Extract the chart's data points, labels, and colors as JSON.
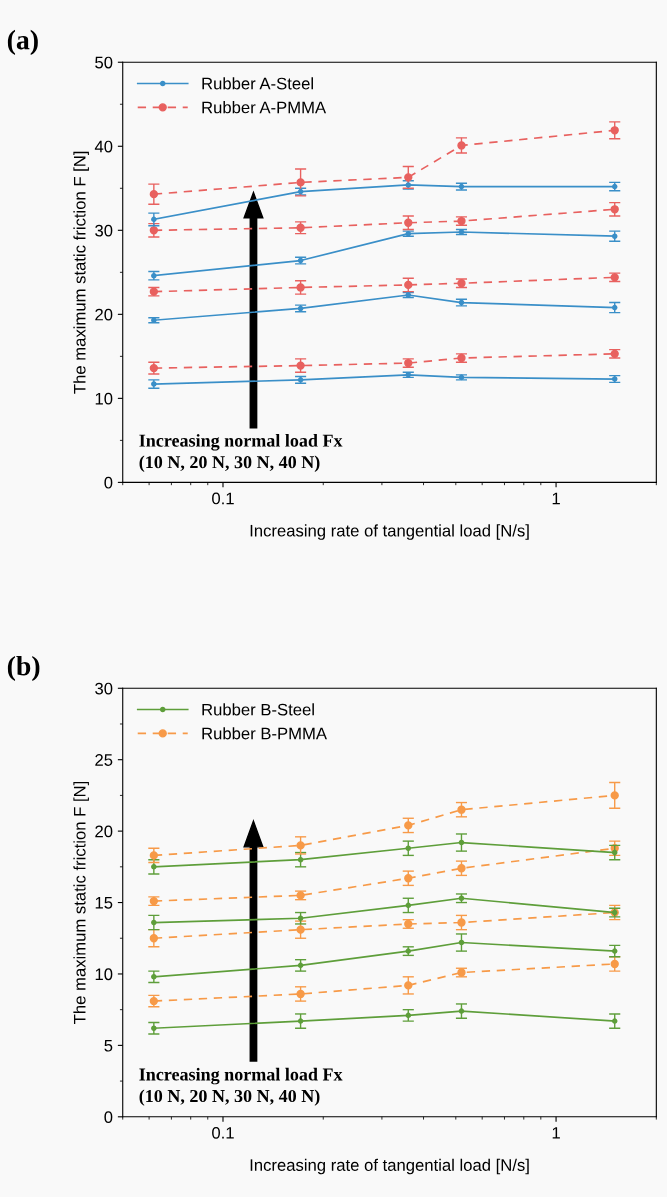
{
  "chart_data": [
    {
      "type": "line",
      "title": "(a)",
      "xlabel": "Increasing rate of tangential load [N/s]",
      "ylabel": "The maximum static friction F [N]",
      "log": "x",
      "xlim": [
        0.05,
        2
      ],
      "xticks": [
        0.1,
        1
      ],
      "ylim": [
        0,
        50
      ],
      "yticks": [
        0,
        10,
        20,
        30,
        40,
        50
      ],
      "legend": "top left",
      "grid": false,
      "marker": "circle",
      "x": [
        0.062,
        0.171,
        0.36,
        0.52,
        1.5
      ],
      "annotations": [
        "Increasing normal load Fx\n(10 N, 20 N, 30 N, 40 N)"
      ],
      "series": [
        {
          "name": "Rubber A-Steel",
          "color": "#3a8fc8",
          "line_style": "solid",
          "values": [
            11.7,
            12.2,
            12.8,
            12.5,
            12.3
          ],
          "errors": [
            0.5,
            0.4,
            0.3,
            0.3,
            0.4
          ]
        },
        {
          "name": "Rubber A-PMMA",
          "color": "#e8615f",
          "line_style": "dashed",
          "values": [
            13.6,
            13.9,
            14.2,
            14.8,
            15.3
          ],
          "errors": [
            0.7,
            0.8,
            0.5,
            0.5,
            0.5
          ]
        },
        {
          "color": "#3a8fc8",
          "line_style": "solid",
          "values": [
            19.3,
            20.7,
            22.3,
            21.4,
            20.8
          ],
          "errors": [
            0.3,
            0.4,
            0.3,
            0.4,
            0.6
          ]
        },
        {
          "color": "#e8615f",
          "line_style": "dashed",
          "values": [
            22.7,
            23.2,
            23.5,
            23.7,
            24.4
          ],
          "errors": [
            0.5,
            0.8,
            0.8,
            0.5,
            0.5
          ]
        },
        {
          "color": "#3a8fc8",
          "line_style": "solid",
          "values": [
            24.6,
            26.4,
            29.6,
            29.8,
            29.3
          ],
          "errors": [
            0.5,
            0.4,
            0.3,
            0.3,
            0.6
          ]
        },
        {
          "color": "#e8615f",
          "line_style": "dashed",
          "values": [
            30.0,
            30.3,
            30.9,
            31.1,
            32.5
          ],
          "errors": [
            0.8,
            0.7,
            0.8,
            0.5,
            0.8
          ]
        },
        {
          "color": "#3a8fc8",
          "line_style": "solid",
          "values": [
            31.3,
            34.6,
            35.4,
            35.2,
            35.2
          ],
          "errors": [
            0.75,
            0.4,
            0.5,
            0.4,
            0.5
          ]
        },
        {
          "color": "#e8615f",
          "line_style": "dashed",
          "values": [
            34.3,
            35.7,
            36.3,
            40.1,
            41.9
          ],
          "errors": [
            1.2,
            1.6,
            1.3,
            0.9,
            1.0
          ]
        }
      ]
    },
    {
      "type": "line",
      "title": "(b)",
      "xlabel": "Increasing rate of tangential load [N/s]",
      "ylabel": "The maximum static friction F [N]",
      "log": "x",
      "xlim": [
        0.05,
        2
      ],
      "xticks": [
        0.1,
        1
      ],
      "ylim": [
        0,
        30
      ],
      "yticks": [
        0,
        5,
        10,
        15,
        20,
        25,
        30
      ],
      "legend": "top left",
      "grid": false,
      "marker": "circle",
      "x": [
        0.062,
        0.171,
        0.36,
        0.52,
        1.5
      ],
      "annotations": [
        "Increasing normal load Fx\n(10 N, 20 N, 30 N, 40 N)"
      ],
      "series": [
        {
          "name": "Rubber B-Steel",
          "color": "#5e9e3a",
          "line_style": "solid",
          "values": [
            6.2,
            6.7,
            7.1,
            7.4,
            6.7
          ],
          "errors": [
            0.4,
            0.5,
            0.4,
            0.5,
            0.5
          ]
        },
        {
          "name": "Rubber B-PMMA",
          "color": "#f79a48",
          "line_style": "dashed",
          "values": [
            8.1,
            8.6,
            9.2,
            10.1,
            10.7
          ],
          "errors": [
            0.4,
            0.5,
            0.6,
            0.3,
            0.5
          ]
        },
        {
          "color": "#5e9e3a",
          "line_style": "solid",
          "values": [
            9.8,
            10.6,
            11.6,
            12.2,
            11.6
          ],
          "errors": [
            0.4,
            0.4,
            0.3,
            0.6,
            0.4
          ]
        },
        {
          "color": "#f79a48",
          "line_style": "dashed",
          "values": [
            12.5,
            13.1,
            13.5,
            13.6,
            14.3
          ],
          "errors": [
            0.6,
            0.6,
            0.3,
            0.5,
            0.5
          ]
        },
        {
          "color": "#5e9e3a",
          "line_style": "solid",
          "values": [
            13.6,
            13.9,
            14.8,
            15.3,
            14.3
          ],
          "errors": [
            0.5,
            0.4,
            0.5,
            0.3,
            0.3
          ]
        },
        {
          "color": "#f79a48",
          "line_style": "dashed",
          "values": [
            15.1,
            15.5,
            16.7,
            17.4,
            18.8
          ],
          "errors": [
            0.3,
            0.3,
            0.5,
            0.5,
            0.5
          ]
        },
        {
          "color": "#5e9e3a",
          "line_style": "solid",
          "values": [
            17.5,
            18.0,
            18.8,
            19.2,
            18.5
          ],
          "errors": [
            0.5,
            0.5,
            0.5,
            0.6,
            0.5
          ]
        },
        {
          "color": "#f79a48",
          "line_style": "dashed",
          "values": [
            18.3,
            19.0,
            20.4,
            21.5,
            22.5
          ],
          "errors": [
            0.5,
            0.6,
            0.5,
            0.5,
            0.9
          ]
        }
      ]
    }
  ]
}
